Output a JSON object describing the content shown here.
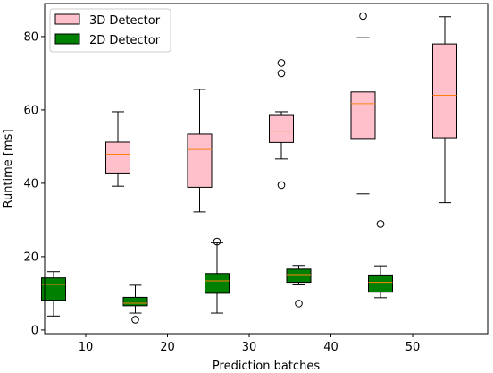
{
  "chart_data": {
    "type": "boxplot",
    "title": "",
    "xlabel": "Prediction batches",
    "ylabel": "Runtime [ms]",
    "ylim": [
      -1,
      89
    ],
    "yticks": [
      0,
      20,
      40,
      60,
      80
    ],
    "categories": [
      "10",
      "20",
      "30",
      "40",
      "50"
    ],
    "grid": false,
    "legend_position": "top-left",
    "series": [
      {
        "name": "3D Detector",
        "fill": "#ffc0cb",
        "boxes": [
          {
            "category": "10",
            "whisker_low": 39.2,
            "q1": 42.8,
            "median": 47.9,
            "q3": 51.2,
            "whisker_high": 59.5,
            "outliers": []
          },
          {
            "category": "20",
            "whisker_low": 32.2,
            "q1": 38.9,
            "median": 49.2,
            "q3": 53.4,
            "whisker_high": 65.6,
            "outliers": []
          },
          {
            "category": "30",
            "whisker_low": 46.6,
            "q1": 51.1,
            "median": 54.2,
            "q3": 58.5,
            "whisker_high": 59.5,
            "outliers": [
              72.8,
              70.0,
              39.5
            ]
          },
          {
            "category": "40",
            "whisker_low": 37.1,
            "q1": 52.2,
            "median": 61.7,
            "q3": 64.9,
            "whisker_high": 79.7,
            "outliers": [
              85.6
            ]
          },
          {
            "category": "50",
            "whisker_low": 34.7,
            "q1": 52.4,
            "median": 64.0,
            "q3": 78.0,
            "whisker_high": 85.4,
            "outliers": []
          }
        ]
      },
      {
        "name": "2D Detector",
        "fill": "#008000",
        "boxes": [
          {
            "category": "10",
            "whisker_low": 3.8,
            "q1": 8.1,
            "median": 12.4,
            "q3": 14.2,
            "whisker_high": 15.9,
            "outliers": []
          },
          {
            "category": "20",
            "whisker_low": 4.6,
            "q1": 6.6,
            "median": 7.3,
            "q3": 8.9,
            "whisker_high": 12.2,
            "outliers": [
              2.8
            ]
          },
          {
            "category": "30",
            "whisker_low": 4.6,
            "q1": 10.0,
            "median": 13.4,
            "q3": 15.4,
            "whisker_high": 23.8,
            "outliers": [
              24.1
            ]
          },
          {
            "category": "40",
            "whisker_low": 12.3,
            "q1": 13.0,
            "median": 15.1,
            "q3": 16.6,
            "whisker_high": 17.6,
            "outliers": [
              7.2
            ]
          },
          {
            "category": "50",
            "whisker_low": 8.8,
            "q1": 10.3,
            "median": 13.0,
            "q3": 15.0,
            "whisker_high": 17.5,
            "outliers": [
              28.9
            ]
          }
        ]
      }
    ],
    "median_color": "#ff7f0e"
  }
}
